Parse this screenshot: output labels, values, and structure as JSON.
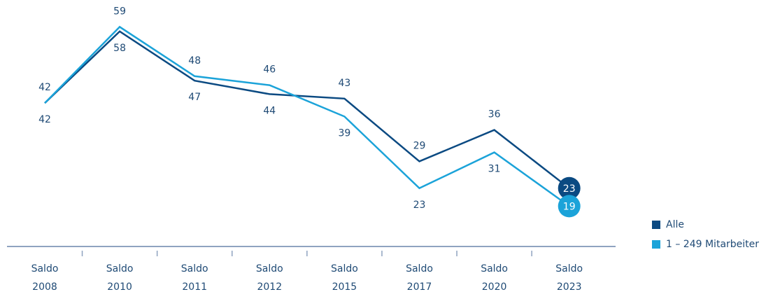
{
  "chart_data": {
    "type": "line",
    "categories": [
      "Saldo 2008",
      "Saldo 2010",
      "Saldo 2011",
      "Saldo 2012",
      "Saldo 2015",
      "Saldo 2017",
      "Saldo 2020",
      "Saldo 2023"
    ],
    "series": [
      {
        "name": "Alle",
        "color": "#0b4a82",
        "values": [
          42,
          58,
          47,
          44,
          43,
          29,
          36,
          23
        ]
      },
      {
        "name": "1 – 249 Mitarbeiter",
        "color": "#1ba3d9",
        "values": [
          42,
          59,
          48,
          46,
          39,
          23,
          31,
          19
        ]
      }
    ],
    "ylim": [
      10,
      65
    ],
    "legend": "bottom-right"
  }
}
